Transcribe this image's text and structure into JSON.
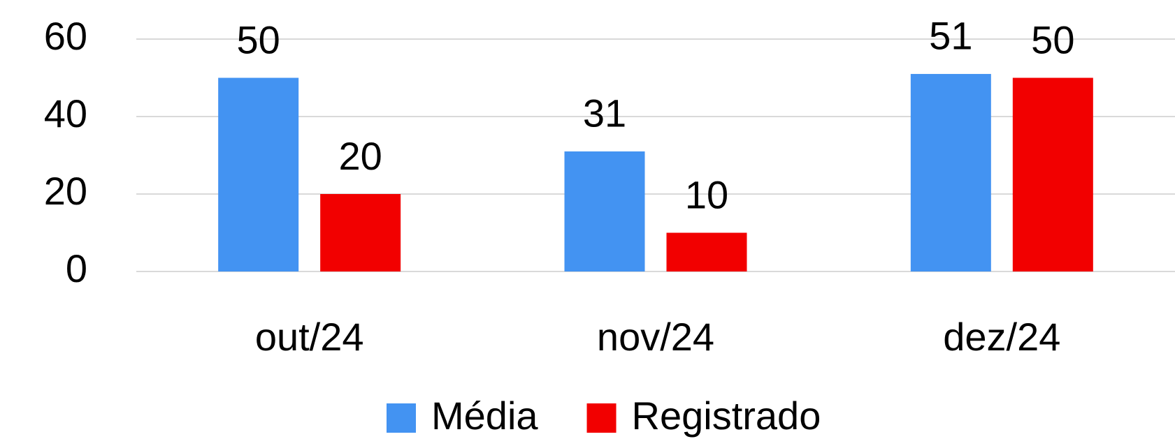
{
  "chart_data": {
    "type": "bar",
    "categories": [
      "out/24",
      "nov/24",
      "dez/24"
    ],
    "series": [
      {
        "name": "Média",
        "color": "#4393f2",
        "values": [
          50,
          31,
          51
        ]
      },
      {
        "name": "Registrado",
        "color": "#f20000",
        "values": [
          20,
          10,
          50
        ]
      }
    ],
    "ylim": [
      0,
      60
    ],
    "yticks": [
      0,
      20,
      40,
      60
    ],
    "grid": true,
    "legend": "bottom"
  }
}
